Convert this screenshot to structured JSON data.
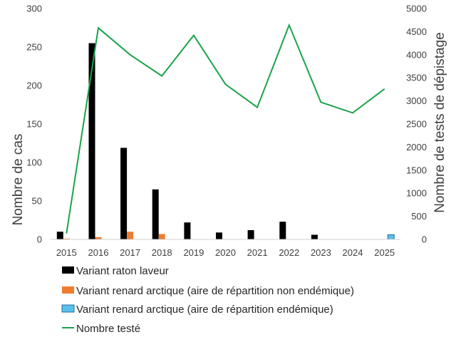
{
  "chart_data": {
    "type": "bar",
    "categories": [
      "2015",
      "2016",
      "2017",
      "2018",
      "2019",
      "2020",
      "2021",
      "2022",
      "2023",
      "2024",
      "2025"
    ],
    "ylabel": "Nombre de cas",
    "y2label": "Nombre de tests de dépistage",
    "ylim": [
      0,
      300
    ],
    "y2lim": [
      0,
      5000
    ],
    "yticks": [
      0,
      50,
      100,
      150,
      200,
      250,
      300
    ],
    "y2ticks": [
      0,
      500,
      1000,
      1500,
      2000,
      2500,
      3000,
      3500,
      4000,
      4500,
      5000
    ],
    "grid": false,
    "legend_position": "bottom",
    "series": [
      {
        "name": "Variant raton laveur",
        "type": "bar",
        "axis": "left",
        "color": "#000000",
        "values": [
          10,
          255,
          119,
          65,
          22,
          9,
          12,
          23,
          6,
          0,
          0
        ]
      },
      {
        "name": "Variant renard arctique (aire de répartition non endémique)",
        "type": "bar",
        "axis": "left",
        "color": "#ED7D31",
        "values": [
          1,
          3,
          10,
          7,
          0,
          0,
          0,
          0,
          0,
          0,
          0
        ]
      },
      {
        "name": "Variant renard arctique (aire de répartition endémique)",
        "type": "bar",
        "axis": "left",
        "color": "#5BC0EB",
        "values": [
          0,
          0,
          0,
          0,
          0,
          0,
          0,
          0,
          0,
          0,
          6
        ]
      },
      {
        "name": "Nombre testé",
        "type": "line",
        "axis": "right",
        "color": "#1AA34A",
        "values": [
          130,
          4580,
          4000,
          3540,
          4420,
          3360,
          2860,
          4640,
          2970,
          2740,
          3260
        ]
      }
    ]
  }
}
